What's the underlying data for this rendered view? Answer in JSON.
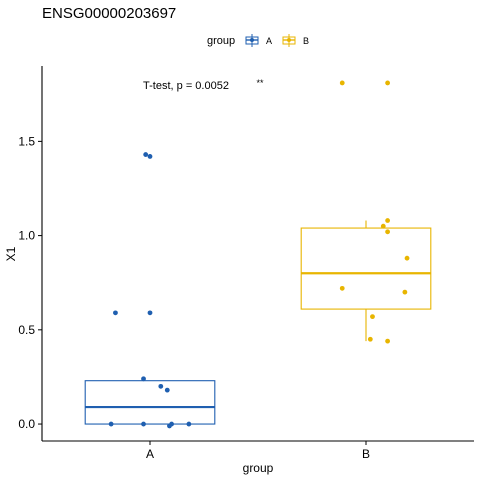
{
  "chart_data": {
    "type": "boxplot",
    "title": "ENSG00000203697",
    "xlabel": "group",
    "ylabel": "X1",
    "categories": [
      "A",
      "B"
    ],
    "ylim": [
      -0.09,
      1.9
    ],
    "yticks": [
      0.0,
      0.5,
      1.0,
      1.5
    ],
    "ytick_labels": [
      "0.0",
      "0.5",
      "1.0",
      "1.5"
    ],
    "grid": false,
    "legend": {
      "title": "group",
      "position": "top",
      "entries": [
        "A",
        "B"
      ]
    },
    "annotation": {
      "text": "T-test, p = 0.0052",
      "significance": "**"
    },
    "colors": {
      "A": "#1f5fb0",
      "B": "#e8b500"
    },
    "series": [
      {
        "name": "A",
        "box": {
          "whisker_low": 0.0,
          "q1": 0.0,
          "median": 0.09,
          "q3": 0.23,
          "whisker_high": 0.23
        },
        "points": [
          {
            "jitter": -0.18,
            "y": 0.0
          },
          {
            "jitter": -0.03,
            "y": 0.0
          },
          {
            "jitter": 0.09,
            "y": -0.01
          },
          {
            "jitter": 0.1,
            "y": 0.0
          },
          {
            "jitter": 0.18,
            "y": 0.0
          },
          {
            "jitter": -0.03,
            "y": 0.24
          },
          {
            "jitter": 0.05,
            "y": 0.2
          },
          {
            "jitter": 0.08,
            "y": 0.18
          },
          {
            "jitter": -0.16,
            "y": 0.59
          },
          {
            "jitter": 0.0,
            "y": 0.59
          },
          {
            "jitter": -0.02,
            "y": 1.43
          },
          {
            "jitter": 0.0,
            "y": 1.42
          }
        ]
      },
      {
        "name": "B",
        "box": {
          "whisker_low": 0.44,
          "q1": 0.61,
          "median": 0.8,
          "q3": 1.04,
          "whisker_high": 1.08
        },
        "points": [
          {
            "jitter": -0.11,
            "y": 1.81
          },
          {
            "jitter": 0.1,
            "y": 1.81
          },
          {
            "jitter": 0.1,
            "y": 1.08
          },
          {
            "jitter": 0.08,
            "y": 1.05
          },
          {
            "jitter": 0.1,
            "y": 1.02
          },
          {
            "jitter": 0.19,
            "y": 0.88
          },
          {
            "jitter": -0.11,
            "y": 0.72
          },
          {
            "jitter": 0.18,
            "y": 0.7
          },
          {
            "jitter": 0.03,
            "y": 0.57
          },
          {
            "jitter": 0.02,
            "y": 0.45
          },
          {
            "jitter": 0.1,
            "y": 0.44
          }
        ]
      }
    ]
  }
}
